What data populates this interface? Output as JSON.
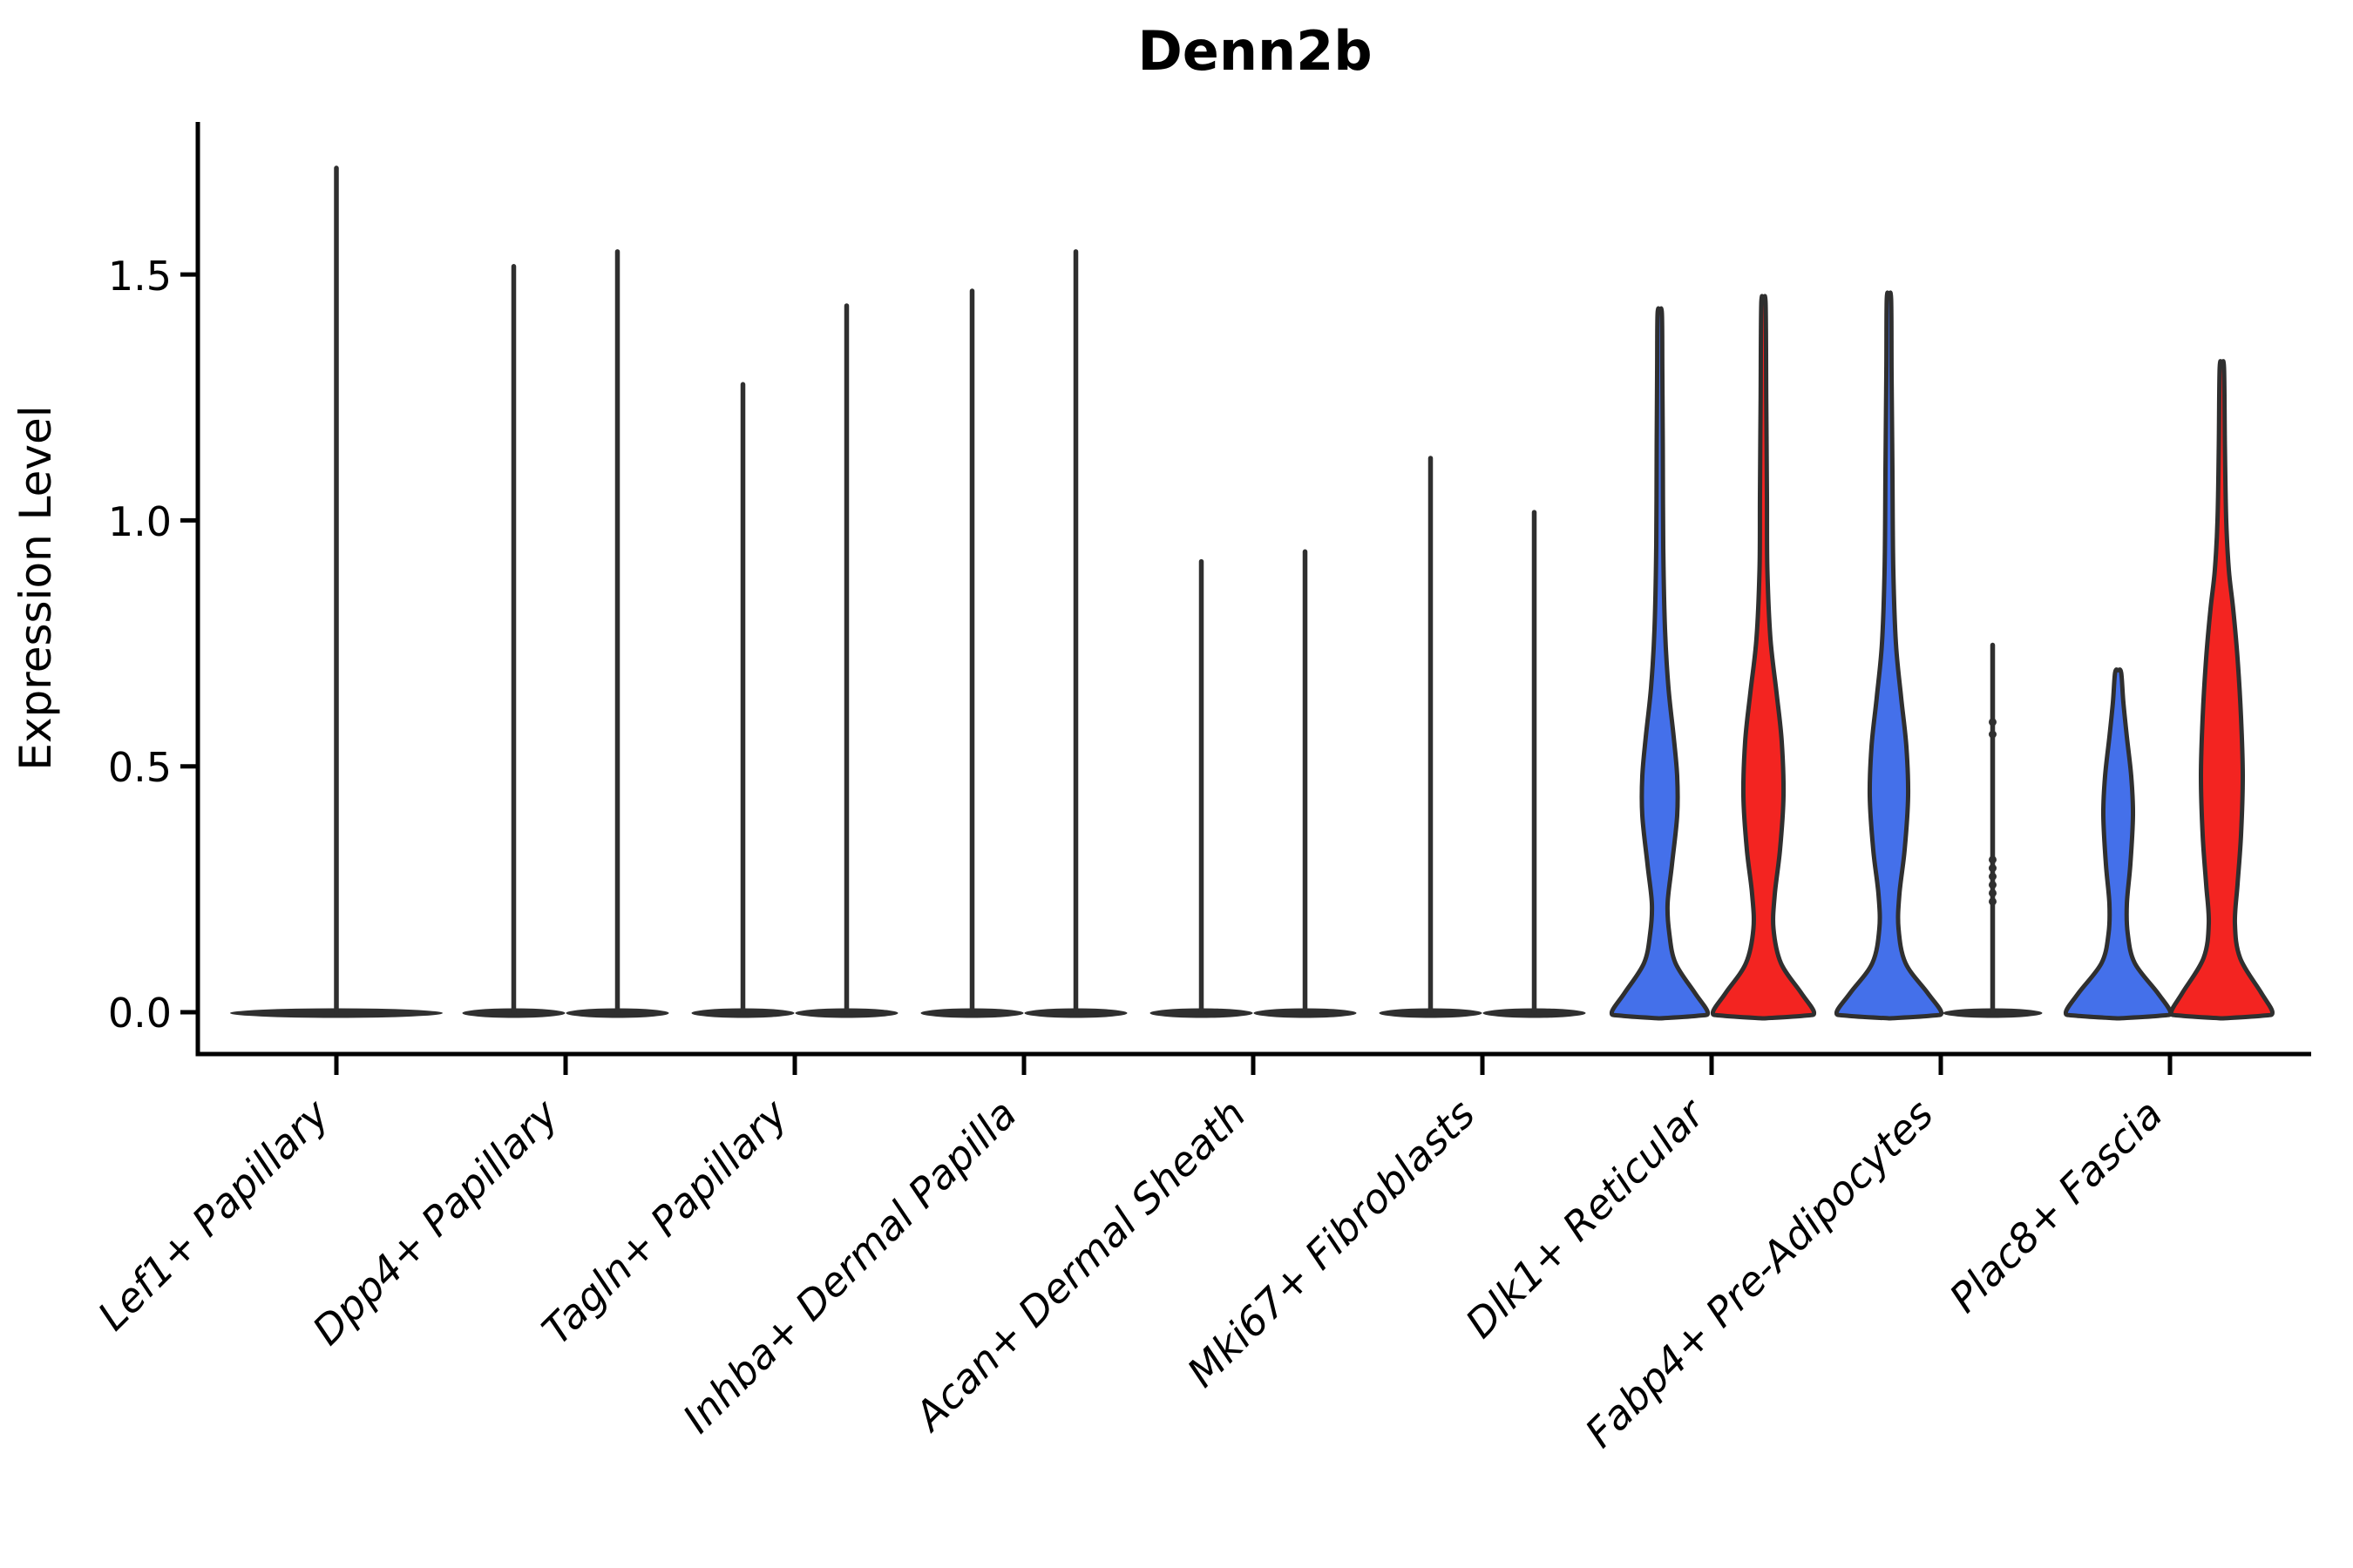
{
  "chart_data": {
    "type": "violin",
    "title": "Denn2b",
    "ylabel": "Expression Level",
    "ytick_labels": [
      "0.0",
      "0.5",
      "1.0",
      "1.5"
    ],
    "ytick_values": [
      0.0,
      0.5,
      1.0,
      1.5
    ],
    "ylim": [
      -0.08,
      1.9
    ],
    "grid": "off",
    "legend": "none",
    "categories": [
      "Lef1+ Papillary",
      "Dpp4+ Papillary",
      "Tagln+ Papillary",
      "Inhba+ Dermal Papilla",
      "Acan+ Dermal Sheath",
      "Mki67+ Fibroblasts",
      "Dlk1+ Reticular",
      "Fabp4+ Pre-Adipocytes",
      "Plac8+ Fascia"
    ],
    "colors": {
      "group1_blue": "#4470EA",
      "group2_red": "#F32421",
      "outline": "#2F2F2F",
      "axis": "#000000"
    },
    "violins": [
      {
        "category": "Lef1+ Papillary",
        "side": "center",
        "kind": "thin",
        "max": 1.72,
        "base_halfwidth": 122
      },
      {
        "category": "Dpp4+ Papillary",
        "side": "left",
        "kind": "thin",
        "max": 1.52,
        "base_halfwidth": 59
      },
      {
        "category": "Dpp4+ Papillary",
        "side": "right",
        "kind": "thin",
        "max": 1.55,
        "base_halfwidth": 59
      },
      {
        "category": "Tagln+ Papillary",
        "side": "left",
        "kind": "thin",
        "max": 1.28,
        "base_halfwidth": 59
      },
      {
        "category": "Tagln+ Papillary",
        "side": "right",
        "kind": "thin",
        "max": 1.44,
        "base_halfwidth": 59
      },
      {
        "category": "Inhba+ Dermal Papilla",
        "side": "left",
        "kind": "thin",
        "max": 1.47,
        "base_halfwidth": 59
      },
      {
        "category": "Inhba+ Dermal Papilla",
        "side": "right",
        "kind": "thin",
        "max": 1.55,
        "base_halfwidth": 59
      },
      {
        "category": "Acan+ Dermal Sheath",
        "side": "left",
        "kind": "thin",
        "max": 0.92,
        "base_halfwidth": 59
      },
      {
        "category": "Acan+ Dermal Sheath",
        "side": "right",
        "kind": "thin",
        "max": 0.94,
        "base_halfwidth": 59
      },
      {
        "category": "Mki67+ Fibroblasts",
        "side": "left",
        "kind": "thin",
        "max": 1.13,
        "base_halfwidth": 59
      },
      {
        "category": "Mki67+ Fibroblasts",
        "side": "right",
        "kind": "thin",
        "max": 1.02,
        "base_halfwidth": 59
      },
      {
        "category": "Dlk1+ Reticular",
        "side": "left",
        "kind": "body",
        "color": "group1_blue",
        "max": 1.42,
        "profile": [
          [
            0,
            55
          ],
          [
            0.04,
            40
          ],
          [
            0.1,
            18
          ],
          [
            0.16,
            11
          ],
          [
            0.22,
            9
          ],
          [
            0.3,
            14
          ],
          [
            0.4,
            20
          ],
          [
            0.48,
            20
          ],
          [
            0.56,
            16
          ],
          [
            0.66,
            10
          ],
          [
            0.78,
            6
          ],
          [
            0.95,
            4
          ],
          [
            1.15,
            3.5
          ],
          [
            1.3,
            3
          ],
          [
            1.42,
            2.5
          ]
        ]
      },
      {
        "category": "Dlk1+ Reticular",
        "side": "right",
        "kind": "body",
        "color": "group2_red",
        "max": 1.44,
        "profile": [
          [
            0,
            58
          ],
          [
            0.04,
            43
          ],
          [
            0.1,
            20
          ],
          [
            0.17,
            11.5
          ],
          [
            0.24,
            13
          ],
          [
            0.33,
            19
          ],
          [
            0.44,
            23
          ],
          [
            0.55,
            21
          ],
          [
            0.65,
            15
          ],
          [
            0.76,
            8
          ],
          [
            0.9,
            4.5
          ],
          [
            1.05,
            4
          ],
          [
            1.25,
            3.2
          ],
          [
            1.44,
            2.5
          ]
        ]
      },
      {
        "category": "Fabp4+ Pre-Adipocytes",
        "side": "left",
        "kind": "body",
        "color": "group1_blue",
        "max": 1.45,
        "profile": [
          [
            0,
            60
          ],
          [
            0.04,
            44
          ],
          [
            0.1,
            19
          ],
          [
            0.17,
            11
          ],
          [
            0.24,
            12
          ],
          [
            0.33,
            18
          ],
          [
            0.44,
            22
          ],
          [
            0.54,
            20
          ],
          [
            0.64,
            14
          ],
          [
            0.75,
            8
          ],
          [
            0.9,
            5
          ],
          [
            1.1,
            4
          ],
          [
            1.3,
            3
          ],
          [
            1.45,
            2.5
          ]
        ]
      },
      {
        "category": "Fabp4+ Pre-Adipocytes",
        "side": "right",
        "kind": "thin",
        "max": 0.75,
        "base_halfwidth": 57,
        "dots": [
          0.59,
          0.565,
          0.31,
          0.293,
          0.276,
          0.259,
          0.242,
          0.225
        ]
      },
      {
        "category": "Plac8+ Fascia",
        "side": "left",
        "kind": "body",
        "color": "group1_blue",
        "max": 0.69,
        "profile": [
          [
            0,
            60
          ],
          [
            0.04,
            45
          ],
          [
            0.1,
            19
          ],
          [
            0.16,
            11
          ],
          [
            0.22,
            10
          ],
          [
            0.3,
            14
          ],
          [
            0.4,
            17
          ],
          [
            0.48,
            15
          ],
          [
            0.56,
            10
          ],
          [
            0.63,
            6
          ],
          [
            0.69,
            3.5
          ]
        ]
      },
      {
        "category": "Plac8+ Fascia",
        "side": "right",
        "kind": "body",
        "color": "group2_red",
        "max": 1.31,
        "profile": [
          [
            0,
            58
          ],
          [
            0.04,
            45
          ],
          [
            0.11,
            21
          ],
          [
            0.18,
            15
          ],
          [
            0.26,
            18
          ],
          [
            0.36,
            22
          ],
          [
            0.48,
            24
          ],
          [
            0.6,
            22
          ],
          [
            0.72,
            18
          ],
          [
            0.82,
            13
          ],
          [
            0.9,
            8
          ],
          [
            1.0,
            5
          ],
          [
            1.15,
            3.5
          ],
          [
            1.31,
            2.5
          ]
        ]
      }
    ]
  }
}
